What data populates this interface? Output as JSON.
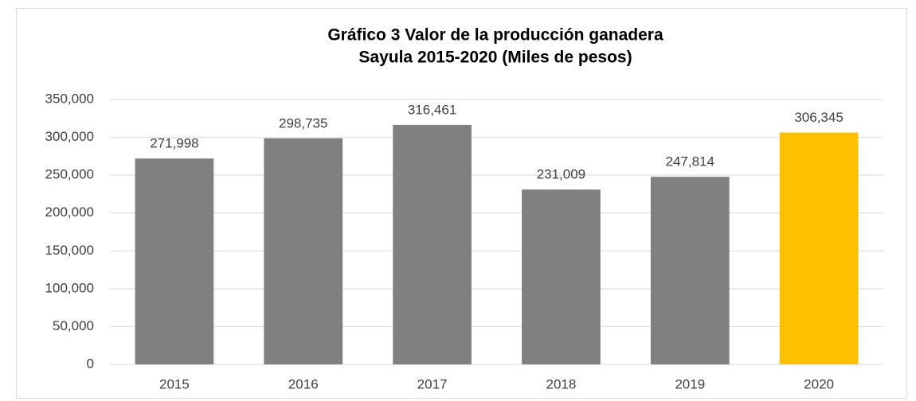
{
  "chart_data": {
    "type": "bar",
    "title": [
      "Gráfico 3 Valor de la producción ganadera",
      "Sayula 2015-2020 (Miles de pesos)"
    ],
    "categories": [
      "2015",
      "2016",
      "2017",
      "2018",
      "2019",
      "2020"
    ],
    "values": [
      271998,
      298735,
      316461,
      231009,
      247814,
      306345
    ],
    "value_labels": [
      "271,998",
      "298,735",
      "316,461",
      "231,009",
      "247,814",
      "306,345"
    ],
    "colors": [
      "#808080",
      "#808080",
      "#808080",
      "#808080",
      "#808080",
      "#ffc000"
    ],
    "ylim": [
      0,
      350000
    ],
    "yticks": [
      0,
      {
        "value": 50000,
        "label": "50,000"
      },
      {
        "value": 100000,
        "label": "100,000"
      },
      {
        "value": 150000,
        "label": "150,000"
      },
      {
        "value": 200000,
        "label": "200,000"
      },
      {
        "value": 250000,
        "label": "250,000"
      },
      {
        "value": 300000,
        "label": "300,000"
      },
      {
        "value": 350000,
        "label": "350,000"
      }
    ],
    "grid": true
  }
}
